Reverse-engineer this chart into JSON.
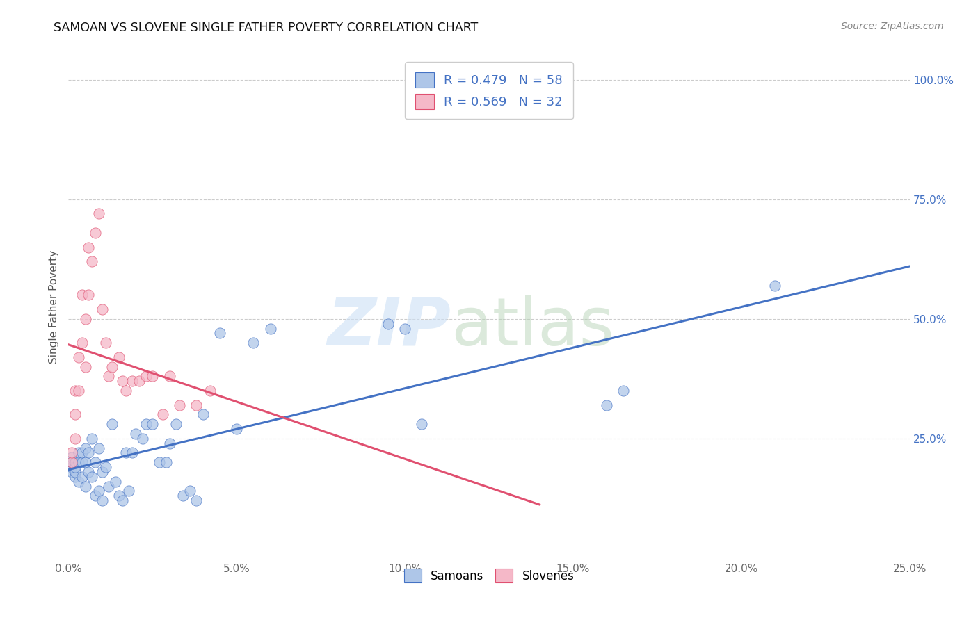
{
  "title": "SAMOAN VS SLOVENE SINGLE FATHER POVERTY CORRELATION CHART",
  "source": "Source: ZipAtlas.com",
  "ylabel": "Single Father Poverty",
  "xlim": [
    0.0,
    0.25
  ],
  "ylim": [
    0.0,
    1.05
  ],
  "xtick_labels": [
    "0.0%",
    "5.0%",
    "10.0%",
    "15.0%",
    "20.0%",
    "25.0%"
  ],
  "xtick_vals": [
    0.0,
    0.05,
    0.1,
    0.15,
    0.2,
    0.25
  ],
  "ytick_labels": [
    "25.0%",
    "50.0%",
    "75.0%",
    "100.0%"
  ],
  "ytick_vals": [
    0.25,
    0.5,
    0.75,
    1.0
  ],
  "samoans_R": 0.479,
  "samoans_N": 58,
  "slovenes_R": 0.569,
  "slovenes_N": 32,
  "samoans_color": "#aec6e8",
  "slovenes_color": "#f5b8c8",
  "samoans_line_color": "#4472c4",
  "slovenes_line_color": "#e05070",
  "legend_labels": [
    "Samoans",
    "Slovenes"
  ],
  "samoans_x": [
    0.001,
    0.001,
    0.001,
    0.001,
    0.002,
    0.002,
    0.002,
    0.002,
    0.003,
    0.003,
    0.003,
    0.004,
    0.004,
    0.004,
    0.005,
    0.005,
    0.005,
    0.006,
    0.006,
    0.007,
    0.007,
    0.008,
    0.008,
    0.009,
    0.009,
    0.01,
    0.01,
    0.011,
    0.012,
    0.013,
    0.014,
    0.015,
    0.016,
    0.017,
    0.018,
    0.019,
    0.02,
    0.022,
    0.023,
    0.025,
    0.027,
    0.029,
    0.03,
    0.032,
    0.034,
    0.036,
    0.038,
    0.04,
    0.045,
    0.05,
    0.055,
    0.06,
    0.095,
    0.1,
    0.105,
    0.16,
    0.165,
    0.21
  ],
  "samoans_y": [
    0.18,
    0.19,
    0.2,
    0.21,
    0.17,
    0.18,
    0.19,
    0.2,
    0.16,
    0.2,
    0.22,
    0.17,
    0.2,
    0.22,
    0.15,
    0.2,
    0.23,
    0.18,
    0.22,
    0.17,
    0.25,
    0.13,
    0.2,
    0.14,
    0.23,
    0.12,
    0.18,
    0.19,
    0.15,
    0.28,
    0.16,
    0.13,
    0.12,
    0.22,
    0.14,
    0.22,
    0.26,
    0.25,
    0.28,
    0.28,
    0.2,
    0.2,
    0.24,
    0.28,
    0.13,
    0.14,
    0.12,
    0.3,
    0.47,
    0.27,
    0.45,
    0.48,
    0.49,
    0.48,
    0.28,
    0.32,
    0.35,
    0.57
  ],
  "slovenes_x": [
    0.001,
    0.001,
    0.002,
    0.002,
    0.002,
    0.003,
    0.003,
    0.004,
    0.004,
    0.005,
    0.005,
    0.006,
    0.006,
    0.007,
    0.008,
    0.009,
    0.01,
    0.011,
    0.012,
    0.013,
    0.015,
    0.016,
    0.017,
    0.019,
    0.021,
    0.023,
    0.025,
    0.028,
    0.03,
    0.033,
    0.038,
    0.042
  ],
  "slovenes_y": [
    0.2,
    0.22,
    0.25,
    0.3,
    0.35,
    0.35,
    0.42,
    0.45,
    0.55,
    0.4,
    0.5,
    0.55,
    0.65,
    0.62,
    0.68,
    0.72,
    0.52,
    0.45,
    0.38,
    0.4,
    0.42,
    0.37,
    0.35,
    0.37,
    0.37,
    0.38,
    0.38,
    0.3,
    0.38,
    0.32,
    0.32,
    0.35
  ]
}
